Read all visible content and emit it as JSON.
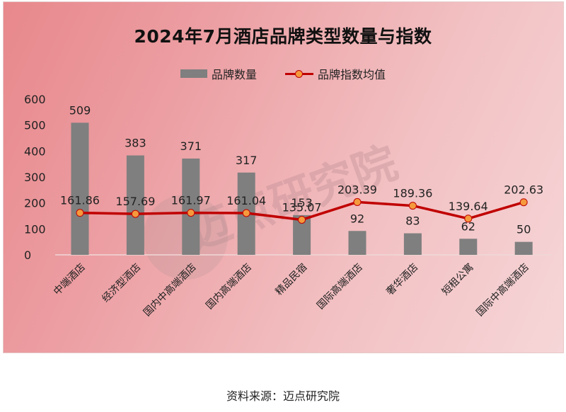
{
  "title": "2024年7月酒店品牌类型数量与指数",
  "legend": {
    "bar_label": "品牌数量",
    "line_label": "品牌指数均值"
  },
  "source": "资料来源：迈点研究院",
  "watermark": "迈点研究院",
  "colors": {
    "bar": "#7f7f7f",
    "line": "#c00000",
    "marker": "#f59a3c"
  },
  "chart_data": {
    "type": "bar+line",
    "title": "2024年7月酒店品牌类型数量与指数",
    "categories": [
      "中端酒店",
      "经济型酒店",
      "国内中高端酒店",
      "国内高端酒店",
      "精品民宿",
      "国际高端酒店",
      "奢华酒店",
      "短租公寓",
      "国际中高端酒店"
    ],
    "series": [
      {
        "name": "品牌数量",
        "type": "bar",
        "values": [
          509,
          383,
          371,
          317,
          153,
          92,
          83,
          62,
          50
        ]
      },
      {
        "name": "品牌指数均值",
        "type": "line",
        "values": [
          161.86,
          157.69,
          161.97,
          161.04,
          135.07,
          203.39,
          189.36,
          139.64,
          202.63
        ]
      }
    ],
    "yticks": [
      0,
      100,
      200,
      300,
      400,
      500,
      600
    ],
    "ylim": [
      0,
      600
    ],
    "xlabel": "",
    "ylabel": "",
    "legend_position": "top",
    "grid": false
  }
}
